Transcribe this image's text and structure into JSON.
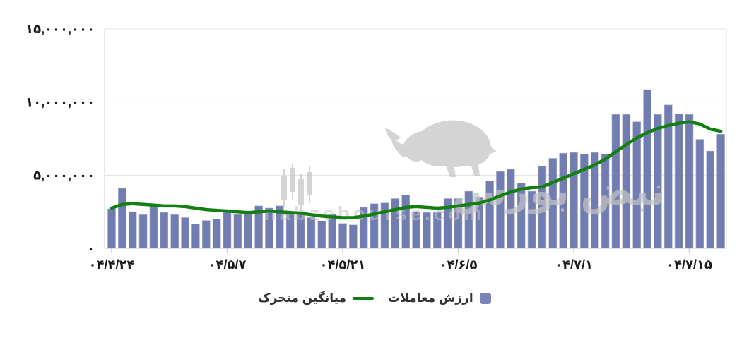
{
  "watermark": {
    "logo_text": "نبض بورس",
    "domain_text": "nabzebourse.com",
    "color": "#c4c4c4"
  },
  "legend": {
    "items": [
      {
        "id": "moving-average",
        "label": "میانگین متحرک",
        "marker": "line",
        "color": "#118011"
      },
      {
        "id": "transaction-value",
        "label": "ارزش معاملات",
        "marker": "square",
        "color": "#7b84b8"
      }
    ]
  },
  "colors": {
    "bar": "#717cb0",
    "bar_edge": "#a9b0d2",
    "line": "#118011",
    "grid": "#e3e3e3",
    "axis": "#cfcfcf",
    "tick_text": "#1a1a1a"
  },
  "chart_data": {
    "type": "bar",
    "title": "",
    "grid": "horizontal",
    "legend_position": "bottom",
    "x_axis": {
      "tick_labels": [
        "۰۴/۴/۲۴",
        "۰۴/۵/۷",
        "۰۴/۵/۲۱",
        "۰۴/۶/۵",
        "۰۴/۷/۱",
        "۰۴/۷/۱۵"
      ],
      "tick_bar_indices": [
        0,
        11,
        22,
        33,
        44,
        55
      ]
    },
    "y_axis": {
      "range": [
        0,
        15000000
      ],
      "ticks": [
        {
          "value": 15000000,
          "label": "۱۵,۰۰۰,۰۰۰"
        },
        {
          "value": 10000000,
          "label": "۱۰,۰۰۰,۰۰۰"
        },
        {
          "value": 5000000,
          "label": "۵,۰۰۰,۰۰۰"
        },
        {
          "value": 0,
          "label": "۰"
        }
      ]
    },
    "series": [
      {
        "name": "ارزش معاملات",
        "type": "bar",
        "color": "#717cb0",
        "values": [
          2700000,
          4100000,
          2500000,
          2300000,
          2950000,
          2450000,
          2300000,
          2100000,
          1650000,
          1900000,
          2000000,
          2650000,
          2300000,
          2450000,
          2900000,
          2750000,
          2900000,
          2500000,
          2300000,
          2100000,
          1850000,
          2350000,
          1700000,
          1600000,
          2800000,
          3050000,
          3100000,
          3400000,
          3650000,
          2500000,
          2450000,
          2450000,
          3400000,
          3400000,
          3900000,
          3500000,
          4600000,
          5250000,
          5400000,
          4450000,
          3900000,
          5600000,
          6150000,
          6500000,
          6550000,
          6450000,
          6550000,
          6450000,
          9150000,
          9150000,
          8650000,
          10850000,
          9150000,
          9800000,
          9200000,
          9150000,
          7450000,
          6650000,
          7800000
        ]
      },
      {
        "name": "میانگین متحرک",
        "type": "line",
        "color": "#118011",
        "values": [
          2750000,
          3000000,
          3050000,
          3000000,
          2950000,
          2900000,
          2900000,
          2850000,
          2750000,
          2650000,
          2600000,
          2550000,
          2500000,
          2450000,
          2500000,
          2550000,
          2500000,
          2450000,
          2400000,
          2300000,
          2200000,
          2150000,
          2100000,
          2100000,
          2200000,
          2350000,
          2500000,
          2650000,
          2800000,
          2850000,
          2800000,
          2750000,
          2800000,
          2900000,
          3000000,
          3100000,
          3300000,
          3600000,
          3850000,
          4050000,
          4150000,
          4200000,
          4500000,
          4800000,
          5100000,
          5400000,
          5700000,
          6100000,
          6600000,
          7100000,
          7550000,
          7900000,
          8200000,
          8400000,
          8550000,
          8650000,
          8500000,
          8150000,
          8000000
        ]
      }
    ]
  }
}
